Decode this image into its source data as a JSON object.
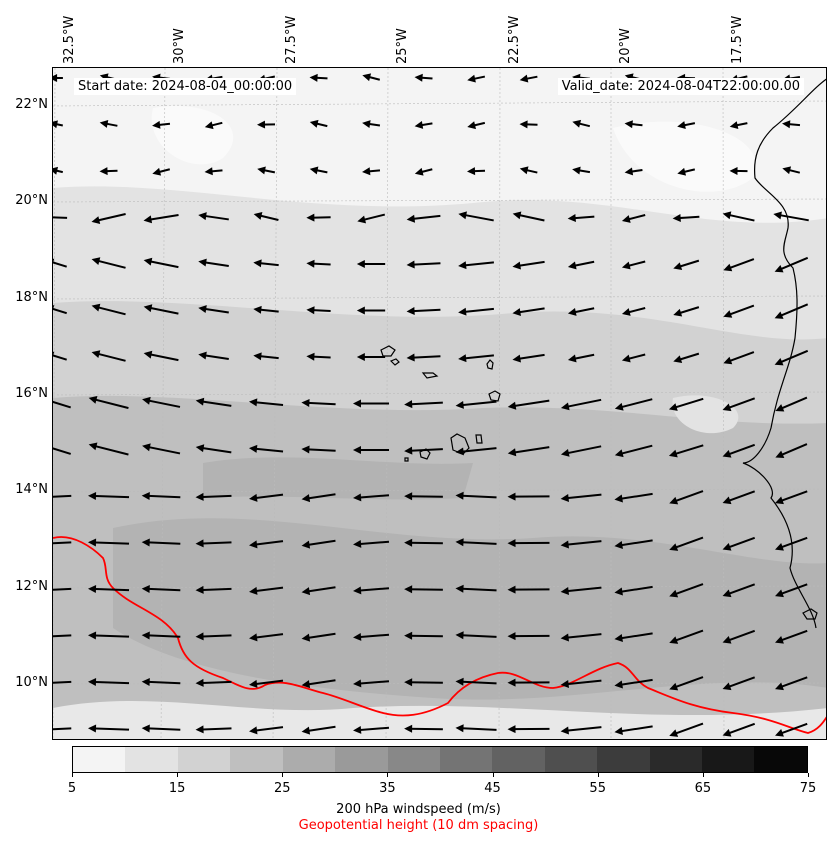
{
  "map": {
    "start_date": "Start date: 2024-08-04_00:00:00",
    "valid_date": "Valid_date: 2024-08-04T22:00:00.00",
    "lon_labels": [
      "32.5°W",
      "30°W",
      "27.5°W",
      "25°W",
      "22.5°W",
      "20°W",
      "17.5°W"
    ],
    "lat_labels": [
      "22°N",
      "20°N",
      "18°N",
      "16°N",
      "14°N",
      "12°N",
      "10°N"
    ],
    "geopotential_color": "#ff0000",
    "coastline_color": "#000000",
    "arrow_color": "#000000"
  },
  "colorbar": {
    "levels": [
      "5",
      "15",
      "25",
      "35",
      "45",
      "55",
      "65",
      "75"
    ],
    "colors": [
      "#f4f4f4",
      "#e3e3e3",
      "#d2d2d2",
      "#bfbfbf",
      "#acacac",
      "#9a9a9a",
      "#888888",
      "#747474",
      "#626262",
      "#4f4f4f",
      "#3c3c3c",
      "#2a2a2a",
      "#181818",
      "#080808"
    ],
    "label": "200 hPa windspeed (m/s)",
    "sublabel": "Geopotential height (10 dm spacing)",
    "sublabel_color": "#ff0000"
  }
}
